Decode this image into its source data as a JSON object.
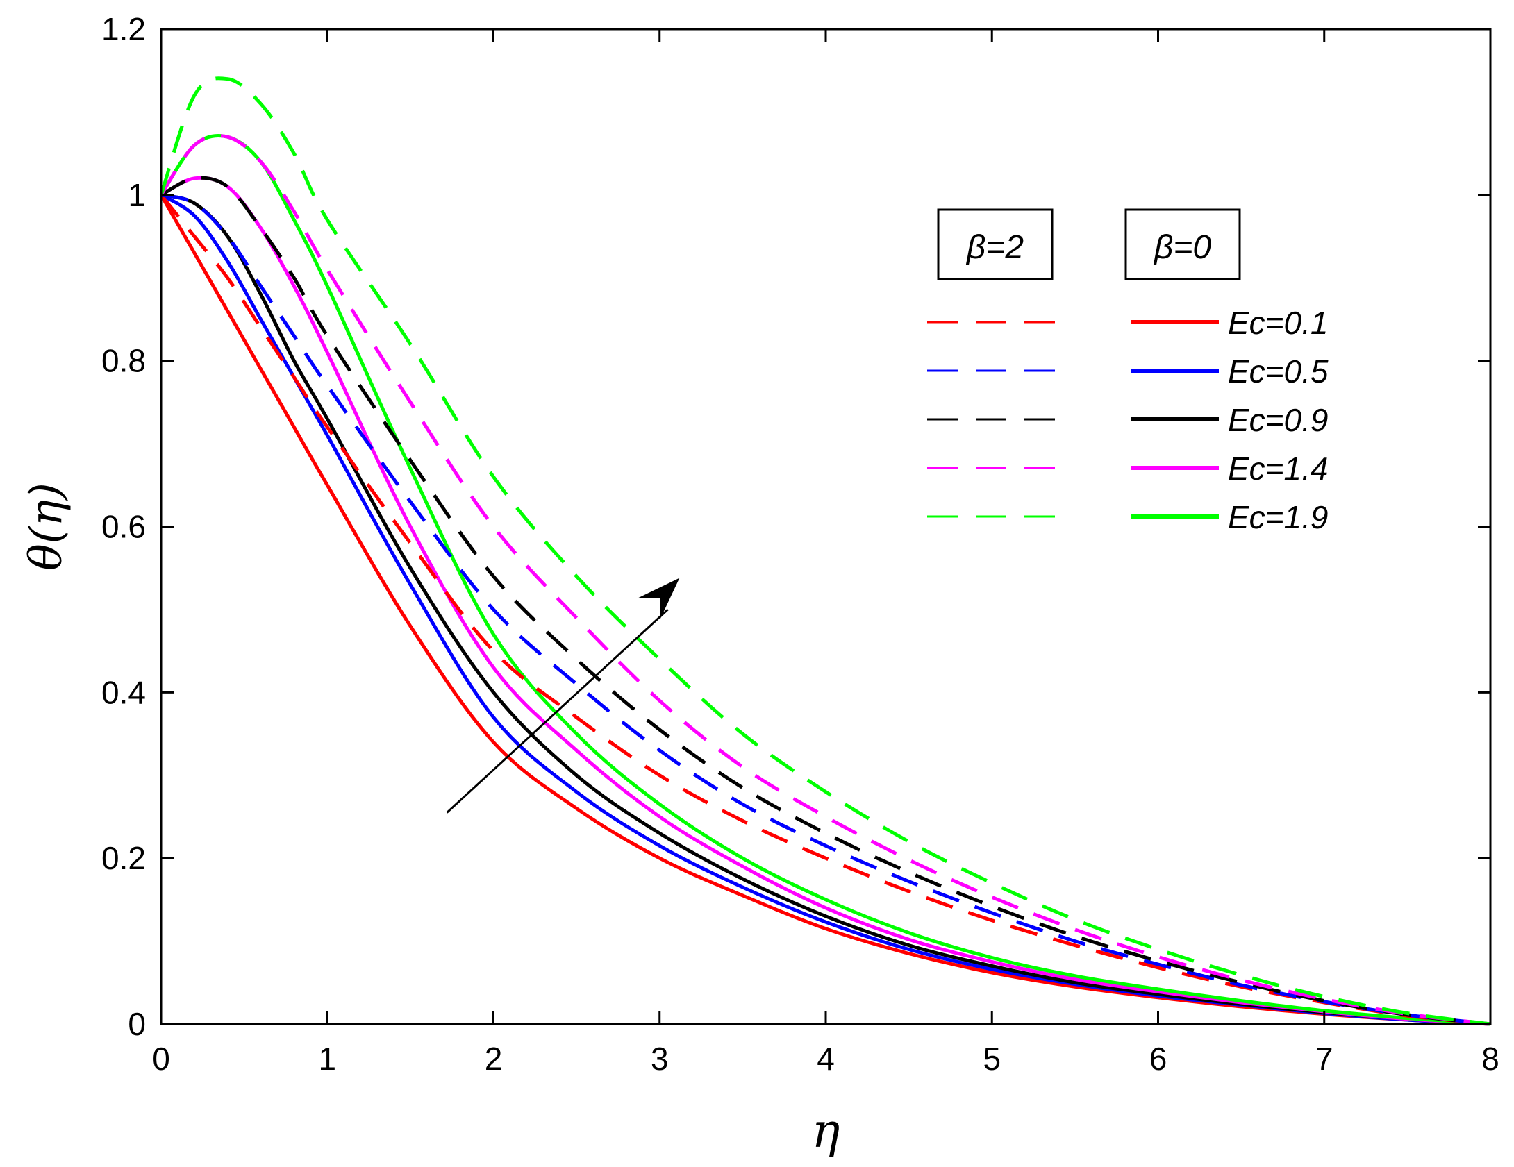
{
  "chart_data": {
    "type": "line",
    "title": "",
    "xlabel": "η",
    "ylabel": "θ(η)",
    "xlim": [
      0,
      8
    ],
    "ylim": [
      0,
      1.2
    ],
    "x_ticks": [
      "0",
      "1",
      "2",
      "3",
      "4",
      "5",
      "6",
      "7",
      "8"
    ],
    "y_ticks": [
      "0",
      "0.2",
      "0.4",
      "0.6",
      "0.8",
      "1",
      "1.2"
    ],
    "legend": {
      "position": "top-right",
      "group_labels": [
        "β=2",
        "β=0"
      ],
      "entries": [
        "Ec=0.1",
        "Ec=0.5",
        "Ec=0.9",
        "Ec=1.4",
        "Ec=1.9"
      ]
    },
    "annotation": "arrow indicating increasing Ec",
    "x": [
      0,
      0.2,
      0.4,
      0.6,
      0.8,
      1,
      1.5,
      2,
      2.5,
      3,
      3.5,
      4,
      4.5,
      5,
      5.5,
      6,
      6.5,
      7,
      7.5,
      8
    ],
    "series": [
      {
        "name": "Ec=0.1",
        "beta": "β=0",
        "color": "#ff0000",
        "dash": "solid",
        "values": [
          1,
          0.93,
          0.86,
          0.79,
          0.72,
          0.65,
          0.48,
          0.34,
          0.26,
          0.2,
          0.155,
          0.115,
          0.085,
          0.062,
          0.045,
          0.032,
          0.021,
          0.012,
          0.005,
          0
        ]
      },
      {
        "name": "Ec=0.5",
        "beta": "β=0",
        "color": "#0000ff",
        "dash": "solid",
        "values": [
          1,
          0.975,
          0.92,
          0.85,
          0.78,
          0.71,
          0.53,
          0.37,
          0.28,
          0.215,
          0.165,
          0.123,
          0.09,
          0.066,
          0.048,
          0.034,
          0.023,
          0.013,
          0.005,
          0
        ]
      },
      {
        "name": "Ec=0.9",
        "beta": "β=0",
        "color": "#000000",
        "dash": "solid",
        "values": [
          1,
          0.99,
          0.95,
          0.88,
          0.8,
          0.73,
          0.55,
          0.4,
          0.3,
          0.23,
          0.175,
          0.13,
          0.095,
          0.07,
          0.05,
          0.036,
          0.024,
          0.014,
          0.006,
          0
        ]
      },
      {
        "name": "Ec=1.4",
        "beta": "β=0",
        "color": "#ff00ff",
        "dash": "solid",
        "values": [
          1,
          1.02,
          1.01,
          0.96,
          0.89,
          0.81,
          0.6,
          0.43,
          0.33,
          0.25,
          0.19,
          0.14,
          0.102,
          0.075,
          0.054,
          0.039,
          0.026,
          0.015,
          0.006,
          0
        ]
      },
      {
        "name": "Ec=1.9",
        "beta": "β=0",
        "color": "#00ff00",
        "dash": "solid",
        "values": [
          1,
          1.06,
          1.07,
          1.04,
          0.97,
          0.89,
          0.67,
          0.47,
          0.35,
          0.265,
          0.2,
          0.15,
          0.11,
          0.08,
          0.058,
          0.042,
          0.028,
          0.016,
          0.007,
          0
        ]
      },
      {
        "name": "Ec=0.1",
        "beta": "β=2",
        "color": "#ff0000",
        "dash": "dashed",
        "values": [
          1,
          0.95,
          0.9,
          0.84,
          0.78,
          0.72,
          0.58,
          0.45,
          0.37,
          0.3,
          0.245,
          0.2,
          0.16,
          0.125,
          0.095,
          0.068,
          0.045,
          0.026,
          0.01,
          0
        ]
      },
      {
        "name": "Ec=0.5",
        "beta": "β=2",
        "color": "#0000ff",
        "dash": "dashed",
        "values": [
          1,
          0.99,
          0.95,
          0.89,
          0.83,
          0.77,
          0.63,
          0.5,
          0.41,
          0.33,
          0.265,
          0.215,
          0.172,
          0.134,
          0.1,
          0.072,
          0.047,
          0.027,
          0.011,
          0
        ]
      },
      {
        "name": "Ec=0.9",
        "beta": "β=2",
        "color": "#000000",
        "dash": "dashed",
        "values": [
          1,
          1.02,
          1.01,
          0.96,
          0.9,
          0.83,
          0.68,
          0.54,
          0.44,
          0.355,
          0.285,
          0.23,
          0.183,
          0.142,
          0.106,
          0.076,
          0.05,
          0.028,
          0.011,
          0
        ]
      },
      {
        "name": "Ec=1.4",
        "beta": "β=2",
        "color": "#ff00ff",
        "dash": "dashed",
        "values": [
          1,
          1.06,
          1.07,
          1.04,
          0.98,
          0.91,
          0.75,
          0.6,
          0.49,
          0.39,
          0.31,
          0.25,
          0.198,
          0.153,
          0.114,
          0.081,
          0.053,
          0.03,
          0.012,
          0
        ]
      },
      {
        "name": "Ec=1.9",
        "beta": "β=2",
        "color": "#00ff00",
        "dash": "dashed",
        "values": [
          1,
          1.12,
          1.14,
          1.11,
          1.05,
          0.97,
          0.82,
          0.66,
          0.54,
          0.44,
          0.35,
          0.28,
          0.22,
          0.17,
          0.126,
          0.09,
          0.059,
          0.033,
          0.013,
          0
        ]
      }
    ]
  }
}
